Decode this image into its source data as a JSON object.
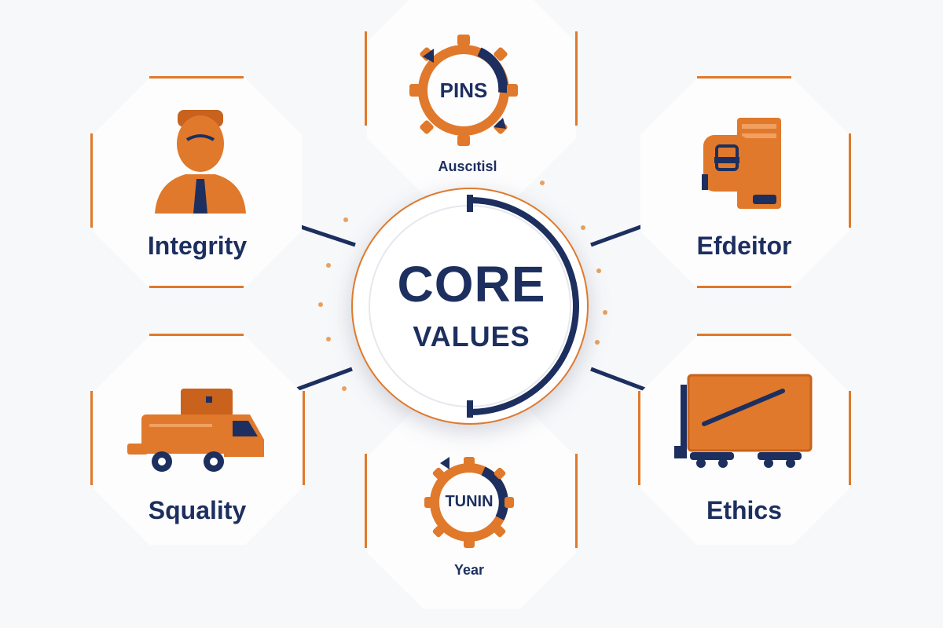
{
  "hub": {
    "line1": "CORE",
    "line2": "VALUES"
  },
  "nodes": [
    {
      "id": "top",
      "label": "Ausсıtisl",
      "emblem_text": "PINS",
      "icon": "gear-badge-icon"
    },
    {
      "id": "upper-left",
      "label": "Integrity",
      "icon": "person-with-tie-icon"
    },
    {
      "id": "upper-right",
      "label": "Efdeitor",
      "icon": "documents-lock-icon"
    },
    {
      "id": "lower-left",
      "label": "Squality",
      "icon": "delivery-truck-icon"
    },
    {
      "id": "lower-right",
      "label": "Ethics",
      "icon": "freight-wagon-icon"
    },
    {
      "id": "bottom",
      "label": "Year",
      "emblem_text": "TUNIN",
      "icon": "gear-badge-icon"
    }
  ],
  "colors": {
    "navy": "#1d2f5f",
    "orange": "#e0792b",
    "background": "#f7f8fa"
  }
}
